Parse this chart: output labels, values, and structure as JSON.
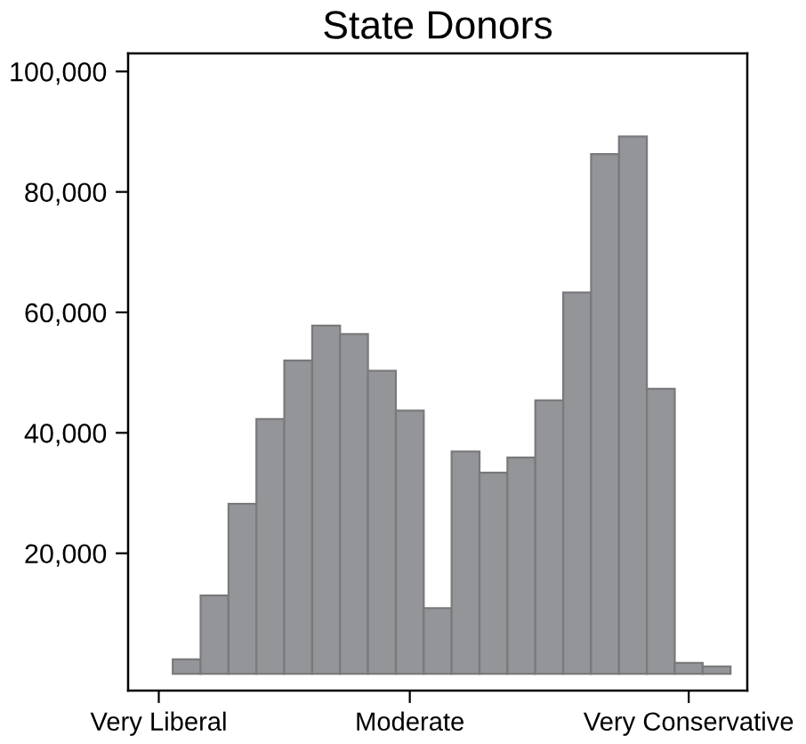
{
  "chart_data": {
    "type": "bar",
    "title": "State Donors",
    "categories": [
      "Very Liberal",
      null,
      null,
      null,
      null,
      null,
      null,
      null,
      null,
      "Moderate",
      null,
      null,
      null,
      null,
      null,
      null,
      null,
      null,
      null,
      "Very Conservative",
      null
    ],
    "values": [
      null,
      2400,
      13000,
      28200,
      42300,
      52000,
      57800,
      56400,
      50300,
      43700,
      10900,
      36900,
      33400,
      35900,
      45400,
      63300,
      86300,
      89200,
      47300,
      1800,
      1200
    ],
    "color": "#939598",
    "ylim": [
      -2800,
      103000
    ],
    "yticks": [
      {
        "value": 20000,
        "label": "20,000"
      },
      {
        "value": 40000,
        "label": "40,000"
      },
      {
        "value": 60000,
        "label": "60,000"
      },
      {
        "value": 80000,
        "label": "80,000"
      },
      {
        "value": 100000,
        "label": "100,000"
      }
    ],
    "grid": false
  }
}
